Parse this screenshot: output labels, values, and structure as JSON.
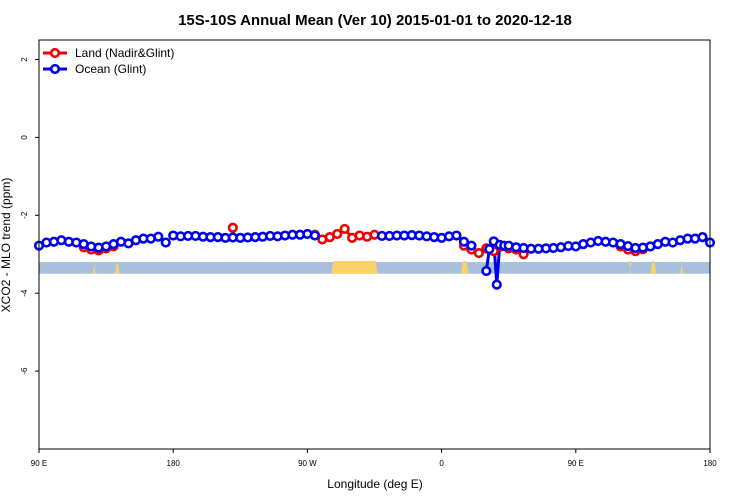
{
  "chart_data": {
    "type": "line",
    "title": "15S-10S Annual Mean (Ver 10)   2015-01-01 to 2020-12-18",
    "xlabel": "Longitude (deg E)",
    "ylabel": "XCO2 - MLO trend (ppm)",
    "xlim": [
      90,
      540
    ],
    "ylim": [
      -8,
      2.5
    ],
    "x_ticks": [
      {
        "value": 90,
        "label": "90 E"
      },
      {
        "value": 180,
        "label": "180"
      },
      {
        "value": 270,
        "label": "90 W"
      },
      {
        "value": 360,
        "label": "0"
      },
      {
        "value": 450,
        "label": "90 E"
      },
      {
        "value": 540,
        "label": "180"
      }
    ],
    "y_ticks": [
      {
        "value": 2,
        "label": "2"
      },
      {
        "value": 0,
        "label": "0"
      },
      {
        "value": -2,
        "label": "-2"
      },
      {
        "value": -4,
        "label": "-4"
      },
      {
        "value": -6,
        "label": "-6"
      }
    ],
    "legend": {
      "position": "top-left"
    },
    "land_band": {
      "y_range": [
        -3.5,
        -3.2
      ],
      "color": "#a8c0dc",
      "land_color": "#f9d36a",
      "land_spans": [
        [
          126,
          128
        ],
        [
          141,
          144
        ],
        [
          286,
          317
        ],
        [
          373,
          378
        ],
        [
          486,
          487
        ],
        [
          500,
          504
        ],
        [
          520,
          522
        ]
      ]
    },
    "series": [
      {
        "name": "Land (Nadir&Glint)",
        "color": "#ee0000",
        "segments": [
          [
            [
              120,
              -2.82
            ],
            [
              125,
              -2.88
            ],
            [
              130,
              -2.9
            ],
            [
              135,
              -2.85
            ],
            [
              140,
              -2.8
            ]
          ],
          [
            [
              275,
              -2.5
            ],
            [
              280,
              -2.62
            ],
            [
              285,
              -2.56
            ],
            [
              290,
              -2.48
            ],
            [
              295,
              -2.35
            ],
            [
              300,
              -2.58
            ],
            [
              305,
              -2.52
            ],
            [
              310,
              -2.55
            ],
            [
              315,
              -2.5
            ]
          ],
          [
            [
              375,
              -2.78
            ],
            [
              380,
              -2.88
            ],
            [
              385,
              -2.97
            ],
            [
              390,
              -2.85
            ],
            [
              395,
              -2.92
            ],
            [
              400,
              -2.8
            ],
            [
              405,
              -2.85
            ],
            [
              410,
              -2.88
            ],
            [
              415,
              -3.0
            ]
          ],
          [
            [
              480,
              -2.8
            ],
            [
              485,
              -2.88
            ],
            [
              490,
              -2.92
            ],
            [
              495,
              -2.87
            ],
            [
              500,
              -2.8
            ]
          ]
        ],
        "isolated": [
          [
            220,
            -2.32
          ]
        ]
      },
      {
        "name": "Ocean (Glint)",
        "color": "#0000ee",
        "segments": [
          [
            [
              90,
              -2.78
            ],
            [
              95,
              -2.7
            ],
            [
              100,
              -2.68
            ],
            [
              105,
              -2.64
            ],
            [
              110,
              -2.68
            ],
            [
              115,
              -2.7
            ],
            [
              120,
              -2.74
            ],
            [
              125,
              -2.8
            ],
            [
              130,
              -2.83
            ],
            [
              135,
              -2.8
            ],
            [
              140,
              -2.74
            ],
            [
              145,
              -2.68
            ],
            [
              150,
              -2.72
            ],
            [
              155,
              -2.64
            ],
            [
              160,
              -2.6
            ],
            [
              165,
              -2.6
            ],
            [
              170,
              -2.55
            ],
            [
              175,
              -2.7
            ]
          ],
          [
            [
              180,
              -2.52
            ],
            [
              185,
              -2.54
            ],
            [
              190,
              -2.53
            ],
            [
              195,
              -2.53
            ],
            [
              200,
              -2.55
            ],
            [
              205,
              -2.56
            ],
            [
              210,
              -2.56
            ],
            [
              215,
              -2.58
            ],
            [
              220,
              -2.57
            ],
            [
              225,
              -2.58
            ],
            [
              230,
              -2.57
            ],
            [
              235,
              -2.56
            ],
            [
              240,
              -2.55
            ],
            [
              245,
              -2.53
            ],
            [
              250,
              -2.54
            ],
            [
              255,
              -2.52
            ],
            [
              260,
              -2.5
            ],
            [
              265,
              -2.5
            ],
            [
              270,
              -2.48
            ],
            [
              275,
              -2.52
            ]
          ],
          [
            [
              320,
              -2.53
            ],
            [
              325,
              -2.53
            ],
            [
              330,
              -2.52
            ],
            [
              335,
              -2.52
            ],
            [
              340,
              -2.51
            ],
            [
              345,
              -2.52
            ],
            [
              350,
              -2.54
            ],
            [
              355,
              -2.56
            ],
            [
              360,
              -2.58
            ],
            [
              365,
              -2.54
            ],
            [
              370,
              -2.52
            ],
            [
              375,
              -2.68
            ],
            [
              380,
              -2.78
            ]
          ],
          [
            [
              390,
              -3.43
            ],
            [
              392,
              -2.87
            ],
            [
              395,
              -2.67
            ],
            [
              397,
              -3.78
            ],
            [
              399,
              -2.76
            ],
            [
              402,
              -2.78
            ],
            [
              405,
              -2.78
            ],
            [
              410,
              -2.82
            ],
            [
              415,
              -2.84
            ],
            [
              420,
              -2.86
            ],
            [
              425,
              -2.86
            ],
            [
              430,
              -2.85
            ],
            [
              435,
              -2.84
            ],
            [
              440,
              -2.82
            ],
            [
              445,
              -2.79
            ],
            [
              450,
              -2.8
            ],
            [
              455,
              -2.74
            ],
            [
              460,
              -2.7
            ],
            [
              465,
              -2.66
            ],
            [
              470,
              -2.68
            ],
            [
              475,
              -2.7
            ],
            [
              480,
              -2.74
            ],
            [
              485,
              -2.79
            ],
            [
              490,
              -2.84
            ],
            [
              495,
              -2.83
            ],
            [
              500,
              -2.8
            ],
            [
              505,
              -2.74
            ],
            [
              510,
              -2.68
            ],
            [
              515,
              -2.7
            ],
            [
              520,
              -2.64
            ],
            [
              525,
              -2.6
            ],
            [
              530,
              -2.6
            ],
            [
              535,
              -2.56
            ],
            [
              540,
              -2.7
            ]
          ]
        ]
      }
    ]
  }
}
